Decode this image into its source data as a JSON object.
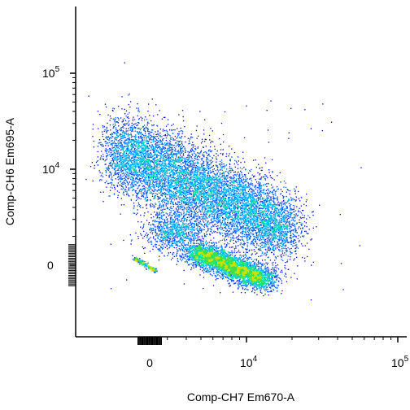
{
  "chart_data": {
    "type": "scatter",
    "style": "density-colored flow cytometry dot plot",
    "xlabel": "Comp-CH7 Em670-A",
    "ylabel": "Comp-CH6 Em695-A",
    "x_scale": "biexponential",
    "y_scale": "biexponential",
    "x_ticks": [
      {
        "value": 0,
        "label": "0"
      },
      {
        "value": 10000,
        "label": "10",
        "exp": "4"
      },
      {
        "value": 100000,
        "label": "10",
        "exp": "5"
      }
    ],
    "y_ticks": [
      {
        "value": 0,
        "label": "0"
      },
      {
        "value": 10000,
        "label": "10",
        "exp": "4"
      },
      {
        "value": 100000,
        "label": "10",
        "exp": "5"
      }
    ],
    "grid": false,
    "legend": "none",
    "density_colors": [
      "#0000cc",
      "#0055ff",
      "#00b0ff",
      "#00e0a0",
      "#40e040",
      "#c8e000"
    ],
    "populations": [
      {
        "id": "upper-diagonal",
        "x_center": 900,
        "y_center": 6000,
        "x_spread": "wide",
        "y_spread": "diagonal"
      },
      {
        "id": "lower-right",
        "x_center": 5000,
        "y_center": 150,
        "x_spread": "medium",
        "y_spread": "narrow"
      },
      {
        "id": "negative-streak",
        "x_center": -60,
        "y_center": 30,
        "x_spread": "narrow",
        "y_spread": "narrow"
      }
    ]
  }
}
